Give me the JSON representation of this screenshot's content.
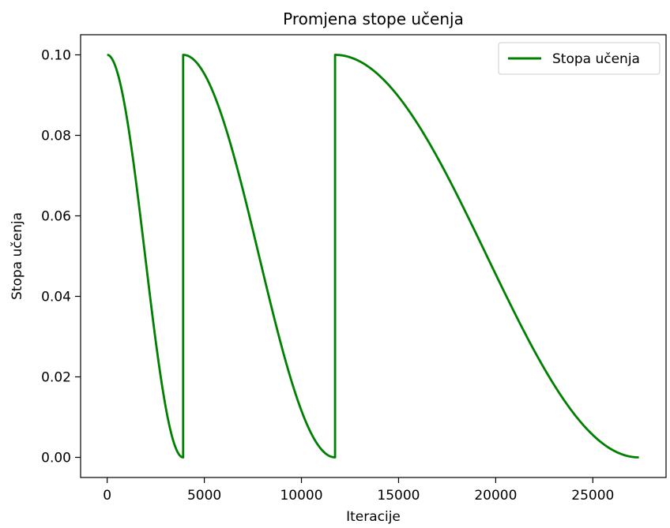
{
  "chart_data": {
    "type": "line",
    "title": "Promjena stope učenja",
    "xlabel": "Iteracije",
    "ylabel": "Stopa učenja",
    "xlim": [
      -1370,
      28770
    ],
    "ylim": [
      -0.005,
      0.105
    ],
    "xticks": [
      0,
      5000,
      10000,
      15000,
      20000,
      25000
    ],
    "xtick_labels": [
      "0",
      "5000",
      "10000",
      "15000",
      "20000",
      "25000"
    ],
    "yticks": [
      0.0,
      0.02,
      0.04,
      0.06,
      0.08,
      0.1
    ],
    "ytick_labels": [
      "0.00",
      "0.02",
      "0.04",
      "0.06",
      "0.08",
      "0.10"
    ],
    "grid": false,
    "legend": {
      "position": "top-right",
      "entries": [
        "Stopa učenja"
      ]
    },
    "series": [
      {
        "name": "Stopa učenja",
        "color": "#008000",
        "description_kind": "cosine annealing with warm restarts",
        "segments": [
          {
            "x_start": 0,
            "x_end": 3910,
            "y_max": 0.1,
            "y_min": 0.0
          },
          {
            "x_start": 3910,
            "x_end": 11730,
            "y_max": 0.1,
            "y_min": 0.0
          },
          {
            "x_start": 11730,
            "x_end": 27370,
            "y_max": 0.1,
            "y_min": 0.0
          }
        ]
      }
    ]
  }
}
